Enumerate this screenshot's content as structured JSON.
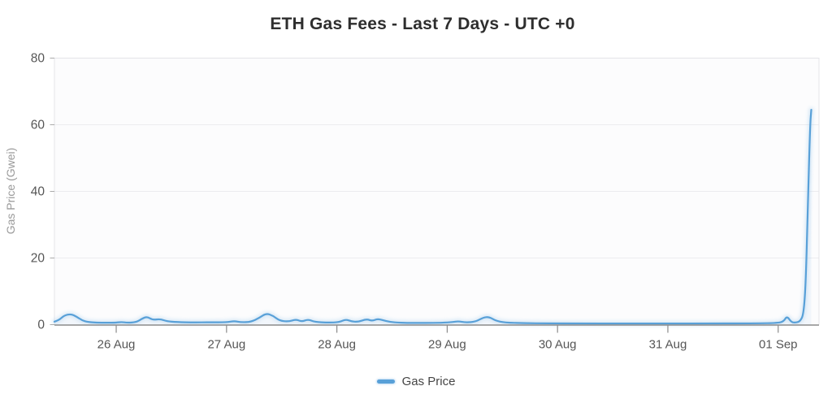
{
  "chart_data": {
    "type": "line",
    "title": "ETH Gas Fees - Last 7 Days - UTC +0",
    "xlabel": "",
    "ylabel": "Gas Price (Gwei)",
    "ylim": [
      0,
      80
    ],
    "y_ticks": [
      0,
      20,
      40,
      60,
      80
    ],
    "x_ticks": [
      {
        "label": "26 Aug",
        "day": 0
      },
      {
        "label": "27 Aug",
        "day": 1
      },
      {
        "label": "28 Aug",
        "day": 2
      },
      {
        "label": "29 Aug",
        "day": 3
      },
      {
        "label": "30 Aug",
        "day": 4
      },
      {
        "label": "31 Aug",
        "day": 5
      },
      {
        "label": "01 Sep",
        "day": 6
      }
    ],
    "x_range_days": [
      -0.56,
      6.37
    ],
    "grid": "horizontal",
    "legend_position": "bottom",
    "series": [
      {
        "name": "Gas Price",
        "color": "#58a0d8",
        "points_unit": "[days_after_26_Aug_00_UTC, gwei]",
        "points": [
          [
            -0.56,
            0.9
          ],
          [
            -0.52,
            1.3
          ],
          [
            -0.47,
            2.8
          ],
          [
            -0.41,
            3.2
          ],
          [
            -0.36,
            2.4
          ],
          [
            -0.31,
            1.3
          ],
          [
            -0.26,
            0.8
          ],
          [
            -0.18,
            0.6
          ],
          [
            -0.08,
            0.55
          ],
          [
            0.0,
            0.6
          ],
          [
            0.05,
            0.8
          ],
          [
            0.1,
            0.55
          ],
          [
            0.18,
            0.7
          ],
          [
            0.24,
            1.9
          ],
          [
            0.28,
            2.4
          ],
          [
            0.33,
            1.4
          ],
          [
            0.4,
            1.7
          ],
          [
            0.46,
            1.0
          ],
          [
            0.55,
            0.75
          ],
          [
            0.7,
            0.65
          ],
          [
            0.85,
            0.7
          ],
          [
            1.0,
            0.7
          ],
          [
            1.07,
            1.1
          ],
          [
            1.13,
            0.7
          ],
          [
            1.22,
            0.8
          ],
          [
            1.3,
            2.1
          ],
          [
            1.36,
            3.4
          ],
          [
            1.42,
            2.7
          ],
          [
            1.48,
            1.2
          ],
          [
            1.56,
            0.9
          ],
          [
            1.63,
            1.6
          ],
          [
            1.68,
            0.9
          ],
          [
            1.74,
            1.6
          ],
          [
            1.8,
            0.8
          ],
          [
            1.92,
            0.6
          ],
          [
            2.02,
            0.7
          ],
          [
            2.08,
            1.6
          ],
          [
            2.13,
            1.0
          ],
          [
            2.19,
            0.8
          ],
          [
            2.27,
            1.7
          ],
          [
            2.32,
            1.1
          ],
          [
            2.37,
            1.8
          ],
          [
            2.44,
            1.1
          ],
          [
            2.52,
            0.65
          ],
          [
            2.65,
            0.5
          ],
          [
            2.8,
            0.5
          ],
          [
            2.95,
            0.55
          ],
          [
            3.05,
            0.75
          ],
          [
            3.1,
            1.05
          ],
          [
            3.17,
            0.6
          ],
          [
            3.26,
            0.9
          ],
          [
            3.33,
            2.2
          ],
          [
            3.38,
            2.3
          ],
          [
            3.44,
            1.2
          ],
          [
            3.52,
            0.6
          ],
          [
            3.7,
            0.45
          ],
          [
            3.9,
            0.4
          ],
          [
            4.2,
            0.35
          ],
          [
            4.6,
            0.35
          ],
          [
            5.0,
            0.35
          ],
          [
            5.4,
            0.35
          ],
          [
            5.8,
            0.4
          ],
          [
            6.0,
            0.5
          ],
          [
            6.05,
            1.0
          ],
          [
            6.08,
            2.6
          ],
          [
            6.12,
            0.7
          ],
          [
            6.16,
            0.6
          ],
          [
            6.2,
            1.0
          ],
          [
            6.23,
            3.2
          ],
          [
            6.25,
            12
          ],
          [
            6.27,
            38
          ],
          [
            6.29,
            60
          ],
          [
            6.3,
            64.5
          ]
        ]
      }
    ]
  },
  "legend": {
    "label": "Gas Price"
  },
  "colors": {
    "line": "#58a0d8",
    "line_glow": "#aed2ee",
    "area_fill": "rgba(120,175,230,0.07)",
    "grid": "#ececef",
    "plot_border": "#e4e4e8",
    "plot_background": "#fcfcfd",
    "axis": "#8b8b8b",
    "tick_label": "#565656",
    "axis_label": "#9a9a9a",
    "title": "#2e2e2e"
  }
}
